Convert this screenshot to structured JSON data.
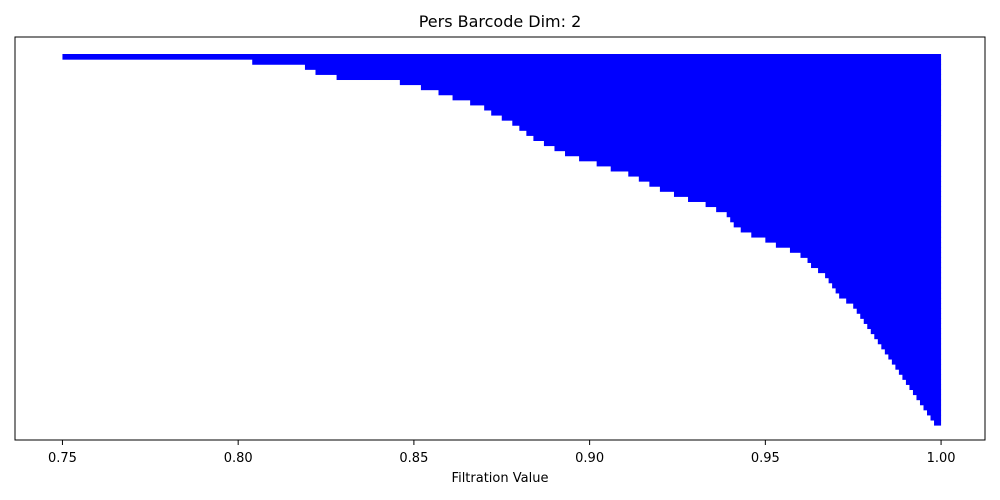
{
  "chart_data": {
    "type": "bar",
    "orientation": "horizontal",
    "title": "Pers Barcode Dim: 2",
    "xlabel": "Filtration Value",
    "ylabel": "",
    "xlim": [
      0.7365,
      1.0125
    ],
    "xticks": [
      "0.75",
      "0.80",
      "0.85",
      "0.90",
      "0.95",
      "1.00"
    ],
    "yticks_visible": false,
    "grid": false,
    "bar_color": "#0000ff",
    "series": [
      {
        "points": [
          [
            0.75,
            1.0
          ],
          [
            0.804,
            1.0
          ],
          [
            0.819,
            1.0
          ],
          [
            0.822,
            1.0
          ],
          [
            0.828,
            1.0
          ],
          [
            0.846,
            1.0
          ],
          [
            0.852,
            1.0
          ],
          [
            0.857,
            1.0
          ],
          [
            0.861,
            1.0
          ],
          [
            0.866,
            1.0
          ],
          [
            0.87,
            1.0
          ],
          [
            0.872,
            1.0
          ],
          [
            0.875,
            1.0
          ],
          [
            0.878,
            1.0
          ],
          [
            0.88,
            1.0
          ],
          [
            0.882,
            1.0
          ],
          [
            0.884,
            1.0
          ],
          [
            0.887,
            1.0
          ],
          [
            0.89,
            1.0
          ],
          [
            0.893,
            1.0
          ],
          [
            0.897,
            1.0
          ],
          [
            0.902,
            1.0
          ],
          [
            0.906,
            1.0
          ],
          [
            0.911,
            1.0
          ],
          [
            0.914,
            1.0
          ],
          [
            0.917,
            1.0
          ],
          [
            0.92,
            1.0
          ],
          [
            0.924,
            1.0
          ],
          [
            0.928,
            1.0
          ],
          [
            0.933,
            1.0
          ],
          [
            0.936,
            1.0
          ],
          [
            0.939,
            1.0
          ],
          [
            0.94,
            1.0
          ],
          [
            0.941,
            1.0
          ],
          [
            0.943,
            1.0
          ],
          [
            0.946,
            1.0
          ],
          [
            0.95,
            1.0
          ],
          [
            0.953,
            1.0
          ],
          [
            0.957,
            1.0
          ],
          [
            0.96,
            1.0
          ],
          [
            0.962,
            1.0
          ],
          [
            0.963,
            1.0
          ],
          [
            0.965,
            1.0
          ],
          [
            0.967,
            1.0
          ],
          [
            0.968,
            1.0
          ],
          [
            0.969,
            1.0
          ],
          [
            0.97,
            1.0
          ],
          [
            0.971,
            1.0
          ],
          [
            0.973,
            1.0
          ],
          [
            0.975,
            1.0
          ],
          [
            0.976,
            1.0
          ],
          [
            0.977,
            1.0
          ],
          [
            0.978,
            1.0
          ],
          [
            0.979,
            1.0
          ],
          [
            0.98,
            1.0
          ],
          [
            0.981,
            1.0
          ],
          [
            0.982,
            1.0
          ],
          [
            0.983,
            1.0
          ],
          [
            0.984,
            1.0
          ],
          [
            0.985,
            1.0
          ],
          [
            0.986,
            1.0
          ],
          [
            0.987,
            1.0
          ],
          [
            0.988,
            1.0
          ],
          [
            0.989,
            1.0
          ],
          [
            0.99,
            1.0
          ],
          [
            0.991,
            1.0
          ],
          [
            0.992,
            1.0
          ],
          [
            0.993,
            1.0
          ],
          [
            0.994,
            1.0
          ],
          [
            0.995,
            1.0
          ],
          [
            0.996,
            1.0
          ],
          [
            0.997,
            1.0
          ],
          [
            0.998,
            1.0
          ]
        ]
      }
    ]
  }
}
